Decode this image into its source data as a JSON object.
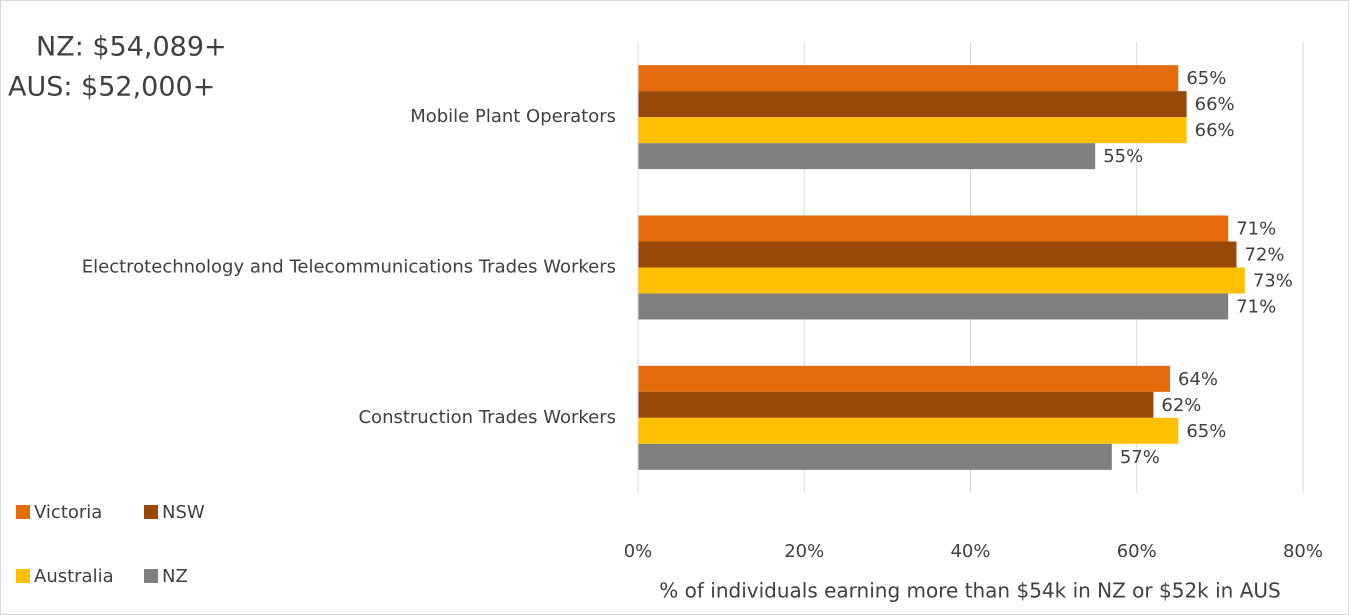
{
  "chart_data": {
    "type": "bar",
    "orientation": "horizontal",
    "annotations": [
      "NZ: $54,089+",
      "AUS: $52,000+"
    ],
    "categories": [
      "Mobile Plant Operators",
      "Electrotechnology and Telecommunications Trades Workers",
      "Construction Trades Workers"
    ],
    "series": [
      {
        "name": "Victoria",
        "color": "#e46c0a",
        "values": [
          65,
          71,
          64
        ],
        "value_labels": [
          "65%",
          "71%",
          "64%"
        ]
      },
      {
        "name": "NSW",
        "color": "#984807",
        "values": [
          66,
          72,
          62
        ],
        "value_labels": [
          "66%",
          "72%",
          "62%"
        ]
      },
      {
        "name": "Australia",
        "color": "#ffc000",
        "values": [
          66,
          73,
          65
        ],
        "value_labels": [
          "66%",
          "73%",
          "65%"
        ]
      },
      {
        "name": "NZ",
        "color": "#808080",
        "values": [
          55,
          71,
          57
        ],
        "value_labels": [
          "55%",
          "71%",
          "57%"
        ]
      }
    ],
    "xlabel": "% of individuals earning more than $54k in NZ or $52k in AUS",
    "xlim": [
      0,
      80
    ],
    "xticks": [
      {
        "value": 0,
        "label": "0%"
      },
      {
        "value": 20,
        "label": "20%"
      },
      {
        "value": 40,
        "label": "40%"
      },
      {
        "value": 60,
        "label": "60%"
      },
      {
        "value": 80,
        "label": "80%"
      }
    ],
    "grid": true,
    "legend": "bottom-left"
  }
}
